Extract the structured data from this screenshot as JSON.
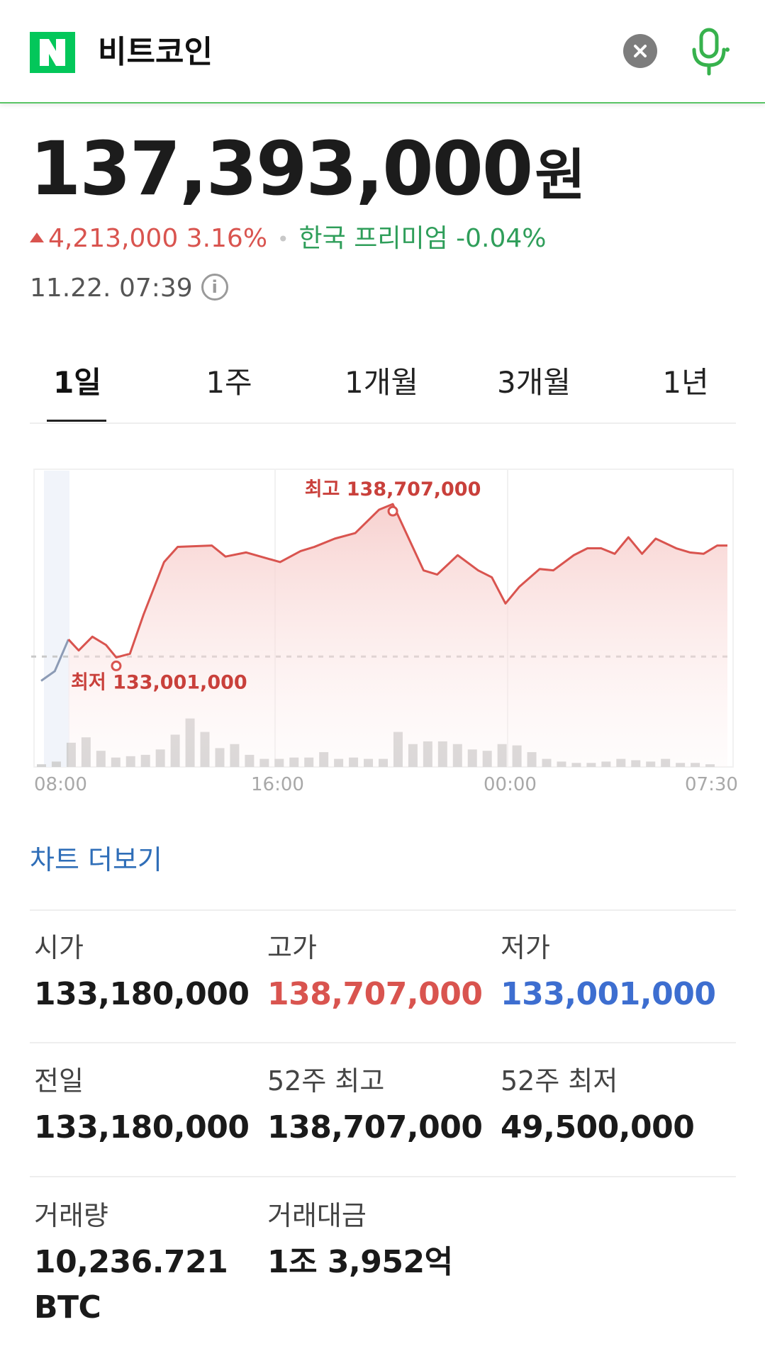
{
  "search": {
    "logo_letter": "N",
    "query": "비트코인",
    "colors": {
      "brand": "#03c75a",
      "accent_line": "#5ac466"
    }
  },
  "quote": {
    "price": "137,393,000",
    "unit": "원",
    "change": "4,213,000 3.16%",
    "premium": "한국 프리미엄 -0.04%",
    "timestamp": "11.22. 07:39",
    "info_icon": "info-circle-icon",
    "colors": {
      "up": "#d9544f",
      "premium": "#2f9e5a"
    }
  },
  "tabs": [
    {
      "label": "1일",
      "active": true
    },
    {
      "label": "1주",
      "active": false
    },
    {
      "label": "1개월",
      "active": false
    },
    {
      "label": "3개월",
      "active": false
    },
    {
      "label": "1년",
      "active": false
    }
  ],
  "chart_data": {
    "type": "area",
    "x_ticks": [
      "08:00",
      "16:00",
      "00:00",
      "07:30"
    ],
    "high_label": "최고 138,707,000",
    "low_label": "최저 133,001,000",
    "high": 138707000,
    "low": 133001000,
    "prev_close": 133180000,
    "ylim": [
      131800000,
      139500000
    ],
    "colors": {
      "line": "#d9544f",
      "fill": "#fbe3e2",
      "pre_line": "#8c9bb5",
      "volume": "#d2d2d2"
    },
    "price_series": [
      [
        0,
        132300000
      ],
      [
        0.2,
        132650000
      ],
      [
        0.4,
        133800000
      ],
      [
        0.55,
        133400000
      ],
      [
        0.75,
        133900000
      ],
      [
        0.95,
        133600000
      ],
      [
        1.1,
        133150000
      ],
      [
        1.3,
        133280000
      ],
      [
        1.5,
        134700000
      ],
      [
        1.8,
        136600000
      ],
      [
        2.0,
        137150000
      ],
      [
        2.5,
        137200000
      ],
      [
        2.7,
        136800000
      ],
      [
        3.0,
        136950000
      ],
      [
        3.5,
        136600000
      ],
      [
        3.8,
        137000000
      ],
      [
        4.0,
        137150000
      ],
      [
        4.3,
        137450000
      ],
      [
        4.6,
        137650000
      ],
      [
        4.95,
        138500000
      ],
      [
        5.15,
        138700000
      ],
      [
        5.6,
        136300000
      ],
      [
        5.8,
        136150000
      ],
      [
        6.1,
        136850000
      ],
      [
        6.4,
        136300000
      ],
      [
        6.6,
        136050000
      ],
      [
        6.8,
        135100000
      ],
      [
        7.0,
        135700000
      ],
      [
        7.3,
        136350000
      ],
      [
        7.5,
        136300000
      ],
      [
        7.8,
        136850000
      ],
      [
        8.0,
        137100000
      ],
      [
        8.2,
        137100000
      ],
      [
        8.4,
        136900000
      ],
      [
        8.6,
        137500000
      ],
      [
        8.8,
        136900000
      ],
      [
        9.0,
        137450000
      ],
      [
        9.3,
        137100000
      ],
      [
        9.5,
        136950000
      ],
      [
        9.7,
        136900000
      ],
      [
        9.9,
        137200000
      ],
      [
        10.05,
        137200000
      ]
    ],
    "volume_series": [
      0.02,
      0.04,
      0.18,
      0.22,
      0.12,
      0.07,
      0.08,
      0.09,
      0.13,
      0.24,
      0.36,
      0.26,
      0.14,
      0.17,
      0.09,
      0.06,
      0.06,
      0.07,
      0.07,
      0.11,
      0.06,
      0.07,
      0.06,
      0.06,
      0.26,
      0.17,
      0.19,
      0.19,
      0.17,
      0.13,
      0.12,
      0.17,
      0.16,
      0.11,
      0.06,
      0.04,
      0.03,
      0.03,
      0.04,
      0.06,
      0.05,
      0.04,
      0.06,
      0.03,
      0.03,
      0.02
    ]
  },
  "more_chart_link": "차트 더보기",
  "stats": [
    {
      "label": "시가",
      "value": "133,180,000",
      "tone": "default"
    },
    {
      "label": "고가",
      "value": "138,707,000",
      "tone": "red"
    },
    {
      "label": "저가",
      "value": "133,001,000",
      "tone": "blue"
    },
    {
      "label": "전일",
      "value": "133,180,000",
      "tone": "default"
    },
    {
      "label": "52주 최고",
      "value": "138,707,000",
      "tone": "default"
    },
    {
      "label": "52주 최저",
      "value": "49,500,000",
      "tone": "default"
    },
    {
      "label": "거래량",
      "value": "10,236.721",
      "value2": "BTC",
      "tone": "default"
    },
    {
      "label": "거래대금",
      "value": "1조 3,952억",
      "tone": "default"
    }
  ]
}
